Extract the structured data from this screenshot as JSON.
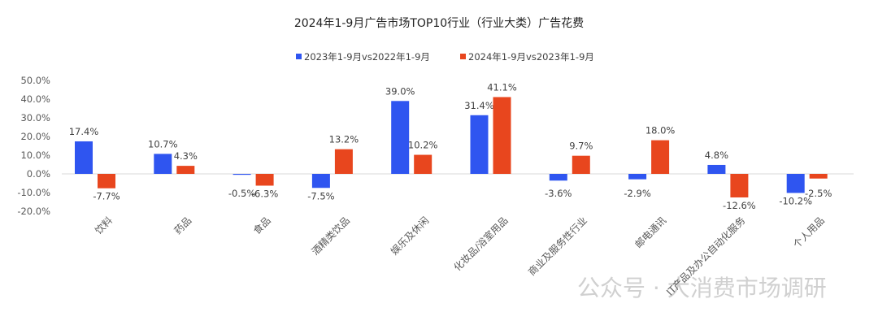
{
  "chart_data": {
    "type": "bar",
    "title": "2024年1-9月广告市场TOP10行业（行业大类）广告花费",
    "xlabel": "",
    "ylabel": "",
    "ylim": [
      -20,
      50
    ],
    "yticks": [
      "50.0%",
      "40.0%",
      "30.0%",
      "20.0%",
      "10.0%",
      "0.0%",
      "-10.0%",
      "-20.0%"
    ],
    "ytick_values": [
      50,
      40,
      30,
      20,
      10,
      0,
      -10,
      -20
    ],
    "grid": false,
    "legend_position": "top-center",
    "categories": [
      "饮料",
      "药品",
      "食品",
      "酒精类饮品",
      "娱乐及休闲",
      "化妆品/浴室用品",
      "商业及服务性行业",
      "邮电通讯",
      "IT产品及办公自动化服务",
      "个人用品"
    ],
    "series": [
      {
        "name": "2023年1-9月vs2022年1-9月",
        "color": "#2f55f0",
        "values": [
          17.4,
          10.7,
          -0.5,
          -7.5,
          39.0,
          31.4,
          -3.6,
          -2.9,
          4.8,
          -10.2
        ],
        "labels": [
          "17.4%",
          "10.7%",
          "-0.5%",
          "-7.5%",
          "39.0%",
          "31.4%",
          "-3.6%",
          "-2.9%",
          "4.8%",
          "-10.2%"
        ]
      },
      {
        "name": "2024年1-9月vs2023年1-9月",
        "color": "#e8461e",
        "values": [
          -7.7,
          4.3,
          -6.3,
          13.2,
          10.2,
          41.1,
          9.7,
          18.0,
          -12.6,
          -2.5
        ],
        "labels": [
          "-7.7%",
          "4.3%",
          "-6.3%",
          "13.2%",
          "10.2%",
          "41.1%",
          "9.7%",
          "18.0%",
          "-12.6%",
          "-2.5%"
        ]
      }
    ]
  },
  "watermark": "公众号 · 大消费市场调研"
}
